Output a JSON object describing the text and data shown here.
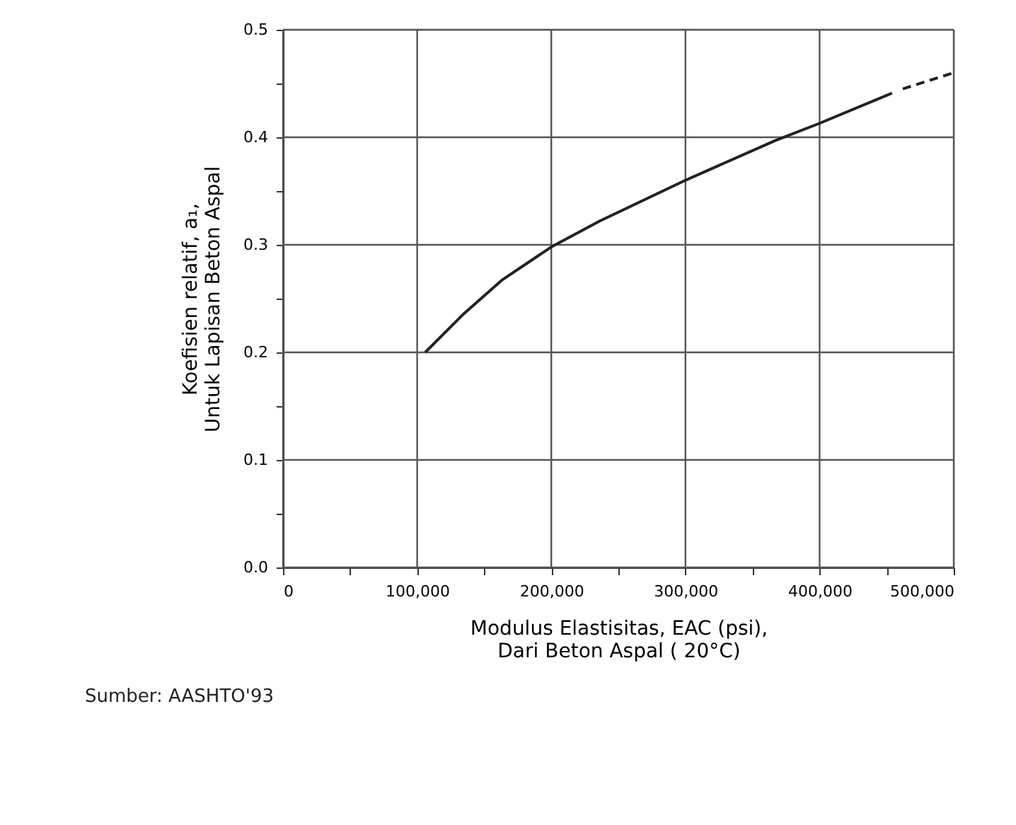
{
  "chart_data": {
    "type": "line",
    "xlabel": "Modulus Elastisitas, EAC (psi),\nDari Beton Aspal ( 20°C)",
    "ylabel": "Koefisien relatif, a₁,\nUntuk Lapisan Beton Aspal",
    "annotations": [
      "Sumber: AASHTO'93"
    ],
    "xlim": [
      0,
      500000
    ],
    "xticks": [
      0,
      {
        "value": 50000,
        "label": null
      },
      {
        "value": 100000,
        "label": "100,000"
      },
      {
        "value": 150000,
        "label": null
      },
      {
        "value": 200000,
        "label": "200,000"
      },
      {
        "value": 250000,
        "label": null
      },
      {
        "value": 300000,
        "label": "300,000"
      },
      {
        "value": 350000,
        "label": null
      },
      {
        "value": 400000,
        "label": "400,000"
      },
      {
        "value": 450000,
        "label": null
      },
      {
        "value": 500000,
        "label": "500,000"
      }
    ],
    "ylim": [
      0,
      0.5
    ],
    "yticks": [
      {
        "value": 0,
        "label": "0.0"
      },
      {
        "value": 0.05,
        "label": null
      },
      {
        "value": 0.1,
        "label": "0.1"
      },
      {
        "value": 0.15,
        "label": null
      },
      {
        "value": 0.2,
        "label": "0.2"
      },
      {
        "value": 0.25,
        "label": null
      },
      {
        "value": 0.3,
        "label": "0.3"
      },
      {
        "value": 0.35,
        "label": null
      },
      {
        "value": 0.4,
        "label": "0.4"
      },
      {
        "value": 0.45,
        "label": null
      },
      {
        "value": 0.5,
        "label": "0.5"
      }
    ],
    "grid": true,
    "marker": "none",
    "series": [
      {
        "color": "#222222",
        "line_style": "solid",
        "x": [
          106000,
          134000,
          163000,
          200000,
          236000,
          300000,
          367000,
          400000,
          454000
        ],
        "values": [
          0.2,
          0.235,
          0.267,
          0.298,
          0.322,
          0.36,
          0.397,
          0.413,
          0.441
        ]
      },
      {
        "color": "#222222",
        "line_style": "dashed",
        "x": [
          462000,
          500000
        ],
        "values": [
          0.445,
          0.46
        ]
      }
    ]
  }
}
